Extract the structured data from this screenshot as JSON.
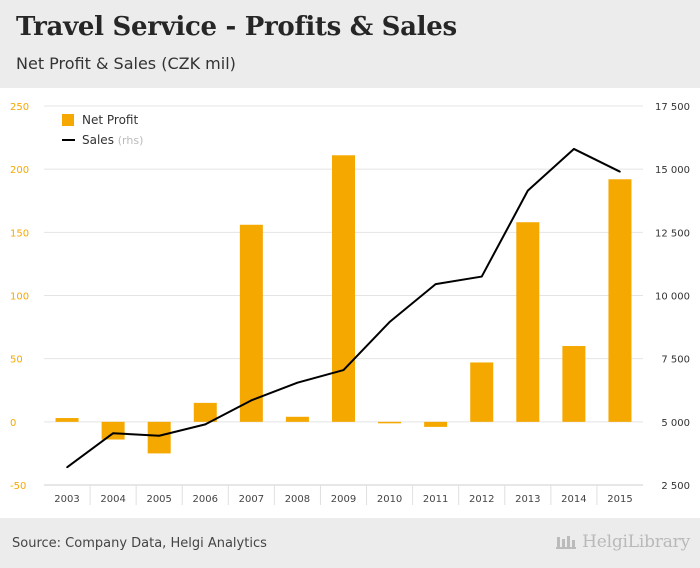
{
  "header": {
    "title": "Travel Service - Profits & Sales",
    "subtitle": "Net Profit & Sales (CZK mil)"
  },
  "footer": {
    "source": "Source: Company Data, Helgi Analytics",
    "logo_text": "HelgiLibrary"
  },
  "colors": {
    "bar": "#f5a800",
    "line": "#000000",
    "left_axis": "#f5a800",
    "right_axis": "#333333"
  },
  "chart_data": {
    "type": "bar",
    "categories": [
      "2003",
      "2004",
      "2005",
      "2006",
      "2007",
      "2008",
      "2009",
      "2010",
      "2011",
      "2012",
      "2013",
      "2014",
      "2015"
    ],
    "series": [
      {
        "name": "Net Profit",
        "type": "bar",
        "axis": "left",
        "values": [
          3,
          -14,
          -25,
          15,
          156,
          4,
          211,
          -1,
          -4,
          47,
          158,
          60,
          192
        ]
      },
      {
        "name": "Sales",
        "name_note": "(rhs)",
        "type": "line",
        "axis": "right",
        "values": [
          3200,
          4550,
          4450,
          4900,
          5850,
          6550,
          7050,
          8950,
          10450,
          10750,
          14150,
          15800,
          14900
        ]
      }
    ],
    "left_axis": {
      "ylim": [
        -50,
        250
      ],
      "ticks": [
        "-50",
        "0",
        "50",
        "100",
        "150",
        "200",
        "250"
      ]
    },
    "right_axis": {
      "ylim": [
        2500,
        17500
      ],
      "ticks": [
        "2 500",
        "5 000",
        "7 500",
        "10 000",
        "12 500",
        "15 000",
        "17 500"
      ]
    },
    "legend_position": "top-left",
    "grid": "horizontal"
  }
}
